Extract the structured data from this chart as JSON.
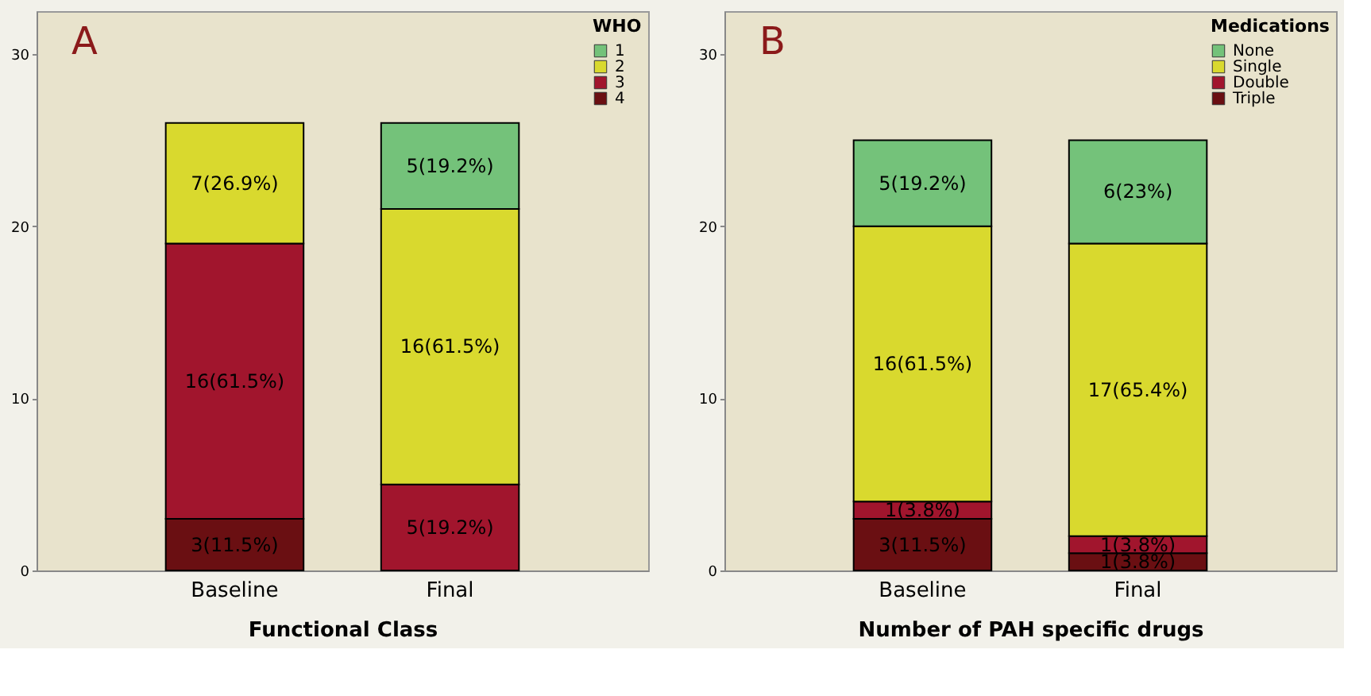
{
  "chart_data": [
    {
      "type": "bar",
      "stacked": true,
      "categories": [
        "Baseline",
        "Final"
      ],
      "xlabel": "Functional Class",
      "legend_title": "WHO",
      "legend": "top right",
      "annotations": [
        "A"
      ],
      "ylim": [
        0,
        32.5
      ],
      "yticks": [
        0,
        10,
        20,
        30
      ],
      "series": [
        {
          "name": "4",
          "color": "#6a0f12",
          "values": [
            3,
            null
          ],
          "value_labels": [
            "3(11.5%)",
            null
          ]
        },
        {
          "name": "3",
          "color": "#a1152d",
          "values": [
            16,
            5
          ],
          "value_labels": [
            "16(61.5%)",
            "5(19.2%)"
          ]
        },
        {
          "name": "2",
          "color": "#d9d92e",
          "values": [
            7,
            16
          ],
          "value_labels": [
            "7(26.9%)",
            "16(61.5%)"
          ]
        },
        {
          "name": "1",
          "color": "#74c27a",
          "values": [
            null,
            5
          ],
          "value_labels": [
            null,
            "5(19.2%)"
          ]
        }
      ]
    },
    {
      "type": "bar",
      "stacked": true,
      "categories": [
        "Baseline",
        "Final"
      ],
      "xlabel": "Number of PAH specific drugs",
      "legend_title": "Medications",
      "legend": "top right",
      "annotations": [
        "B"
      ],
      "ylim": [
        0,
        32.5
      ],
      "yticks": [
        0,
        10,
        20,
        30
      ],
      "series": [
        {
          "name": "Triple",
          "color": "#6a0f12",
          "values": [
            3,
            1
          ],
          "value_labels": [
            "3(11.5%)",
            "1(3.8%)"
          ]
        },
        {
          "name": "Double",
          "color": "#a1152d",
          "values": [
            1,
            1
          ],
          "value_labels": [
            "1(3.8%)",
            "1(3.8%)"
          ]
        },
        {
          "name": "Single",
          "color": "#d9d92e",
          "values": [
            16,
            17
          ],
          "value_labels": [
            "16(61.5%)",
            "17(65.4%)"
          ]
        },
        {
          "name": "None",
          "color": "#74c27a",
          "values": [
            5,
            6
          ],
          "value_labels": [
            "5(19.2%)",
            "6(23%)"
          ]
        }
      ]
    }
  ]
}
